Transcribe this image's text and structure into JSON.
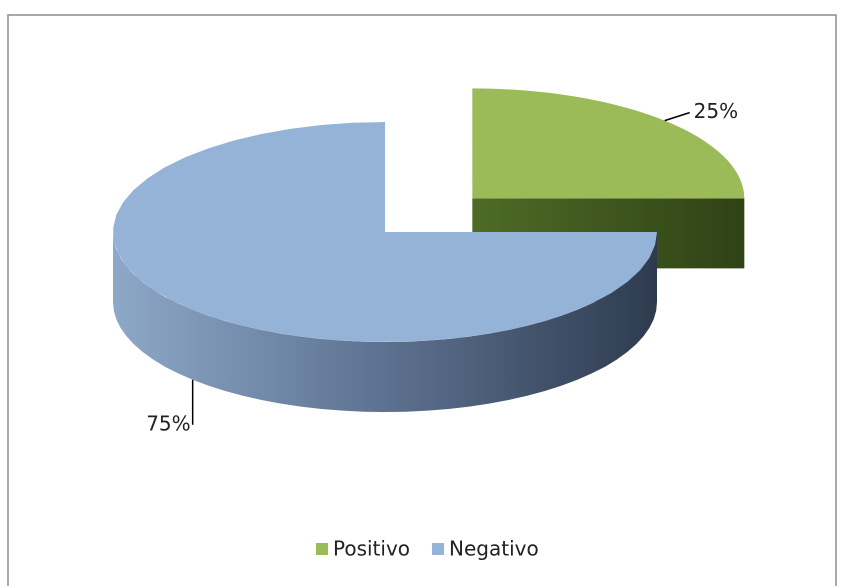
{
  "chart_data": {
    "type": "pie3d",
    "categories": [
      "Positivo",
      "Negativo"
    ],
    "values": [
      25,
      75
    ],
    "value_labels": [
      "25%",
      "75%"
    ],
    "colors": [
      "#9bbb59",
      "#95b3d7"
    ],
    "legend": "bottom"
  }
}
